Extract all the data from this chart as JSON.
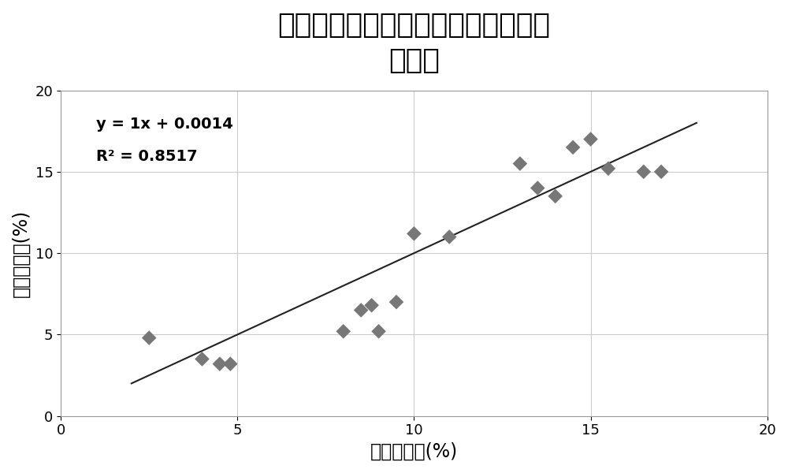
{
  "title_line1": "反射率一阶导数预测与实测孔隙度相",
  "title_line2": "关关系",
  "xlabel": "预测孔隙度(%)",
  "ylabel": "实测孔隙度(%)",
  "scatter_x": [
    2.5,
    4.0,
    4.5,
    4.8,
    8.0,
    8.5,
    8.8,
    9.0,
    9.5,
    10.0,
    11.0,
    13.0,
    13.5,
    14.0,
    14.5,
    15.0,
    15.5,
    16.5,
    17.0
  ],
  "scatter_y": [
    4.8,
    3.5,
    3.2,
    3.2,
    5.2,
    6.5,
    6.8,
    5.2,
    7.0,
    11.2,
    11.0,
    15.5,
    14.0,
    13.5,
    16.5,
    17.0,
    15.2,
    15.0,
    15.0
  ],
  "equation": "y = 1x + 0.0014",
  "r_squared": "R² = 0.8517",
  "line_x": [
    2.0,
    18.0
  ],
  "line_y": [
    2.0014,
    18.0014
  ],
  "xlim": [
    0,
    20
  ],
  "ylim": [
    0,
    20
  ],
  "xticks": [
    0,
    5,
    10,
    15,
    20
  ],
  "yticks": [
    0,
    5,
    10,
    15,
    20
  ],
  "marker_color": "#777777",
  "line_color": "#222222",
  "bg_color": "#ffffff",
  "grid_color": "#cccccc",
  "title_fontsize": 26,
  "label_fontsize": 17,
  "annotation_fontsize": 14,
  "tick_fontsize": 13
}
